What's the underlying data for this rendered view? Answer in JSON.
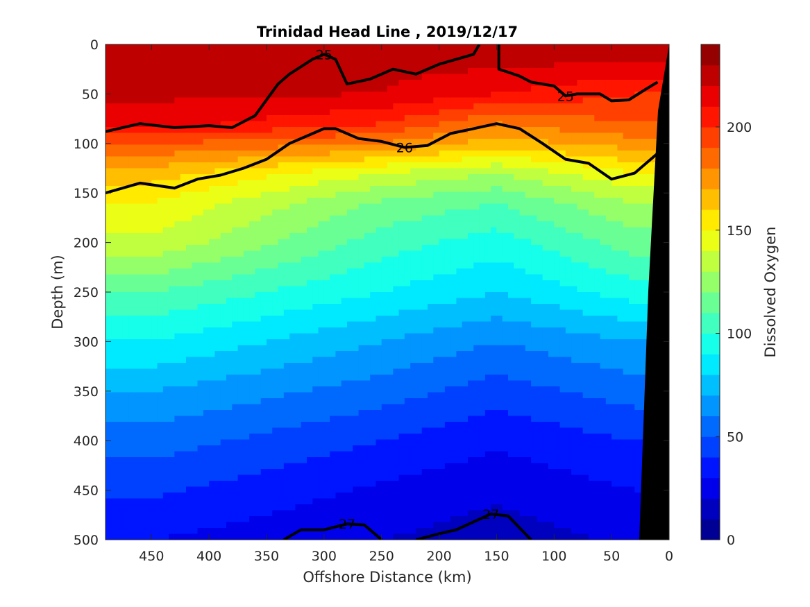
{
  "chart_data": {
    "type": "heatmap",
    "subtype": "filled-contour section with density contours",
    "title": "Trinidad Head Line , 2019/12/17",
    "xlabel": "Offshore Distance (km)",
    "ylabel": "Depth (m)",
    "colorbar_label": "Dissolved Oxygen",
    "xlim": [
      490,
      0
    ],
    "ylim": [
      0,
      500
    ],
    "x_reversed": true,
    "y_reversed": true,
    "x_ticks": [
      450,
      400,
      350,
      300,
      250,
      200,
      150,
      100,
      50,
      0
    ],
    "y_ticks": [
      0,
      50,
      100,
      150,
      200,
      250,
      300,
      350,
      400,
      450,
      500
    ],
    "colorbar_range": [
      0,
      240
    ],
    "colorbar_ticks": [
      0,
      50,
      100,
      150,
      200
    ],
    "colorbar_levels": 24,
    "colormap": "jet",
    "oxygen_by_depth_profile": {
      "depth": [
        0,
        50,
        80,
        100,
        130,
        160,
        200,
        250,
        300,
        350,
        400,
        450,
        500
      ],
      "offshore_450km": [
        225,
        222,
        215,
        190,
        165,
        150,
        138,
        110,
        90,
        70,
        55,
        42,
        30
      ],
      "offshore_250km": [
        225,
        220,
        200,
        180,
        140,
        118,
        105,
        90,
        70,
        55,
        40,
        28,
        20
      ],
      "offshore_150km": [
        230,
        210,
        180,
        165,
        130,
        110,
        95,
        80,
        60,
        45,
        32,
        22,
        15
      ],
      "offshore_30km": [
        230,
        200,
        190,
        175,
        150,
        130,
        115,
        95,
        70,
        55,
        40,
        30,
        22
      ]
    },
    "contour_lines": [
      {
        "label": "25",
        "x": [
          490,
          460,
          430,
          400,
          380,
          360,
          340,
          330,
          310,
          300,
          290,
          280,
          260,
          240,
          220,
          200,
          185,
          170,
          165
        ],
        "y": [
          88,
          80,
          84,
          82,
          84,
          72,
          40,
          30,
          15,
          10,
          15,
          40,
          35,
          25,
          30,
          20,
          15,
          10,
          0
        ]
      },
      {
        "label": "25",
        "x": [
          148,
          148,
          140,
          130,
          120,
          100,
          90,
          80,
          60,
          50,
          35,
          20,
          10
        ],
        "y": [
          0,
          25,
          28,
          32,
          38,
          42,
          52,
          50,
          50,
          57,
          56,
          45,
          38
        ]
      },
      {
        "label": "26",
        "x": [
          490,
          460,
          430,
          410,
          390,
          370,
          350,
          330,
          300,
          290,
          270,
          250,
          230,
          210,
          190,
          170,
          150,
          130,
          110,
          90,
          70,
          50,
          30,
          10
        ],
        "y": [
          150,
          140,
          145,
          136,
          132,
          125,
          116,
          100,
          85,
          85,
          95,
          98,
          104,
          102,
          90,
          85,
          80,
          85,
          100,
          116,
          120,
          136,
          130,
          110
        ]
      },
      {
        "label": "27",
        "x": [
          335,
          320,
          300,
          280,
          265,
          250
        ],
        "y": [
          500,
          490,
          490,
          484,
          485,
          500
        ]
      },
      {
        "label": "27",
        "x": [
          220,
          200,
          185,
          170,
          155,
          140,
          130,
          120
        ],
        "y": [
          500,
          494,
          490,
          482,
          474,
          476,
          488,
          500
        ]
      }
    ],
    "grid": false,
    "legend": "colorbar right"
  }
}
